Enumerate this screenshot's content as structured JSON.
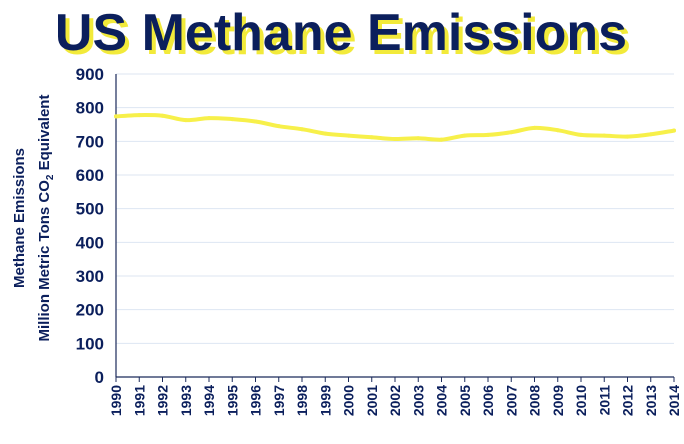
{
  "chart_data": {
    "type": "line",
    "title": "US Methane Emissions",
    "ylabel_line1": "Methane Emissions",
    "ylabel_line2_prefix": "Million Metric Tons CO",
    "ylabel_line2_sub": "2",
    "ylabel_line2_suffix": " Equivalent",
    "ylim": [
      0,
      900
    ],
    "y_ticks": [
      "0",
      "100",
      "200",
      "300",
      "400",
      "500",
      "600",
      "700",
      "800",
      "900"
    ],
    "categories": [
      "1990",
      "1991",
      "1992",
      "1993",
      "1994",
      "1995",
      "1996",
      "1997",
      "1998",
      "1999",
      "2000",
      "2001",
      "2002",
      "2003",
      "2004",
      "2005",
      "2006",
      "2007",
      "2008",
      "2009",
      "2010",
      "2011",
      "2012",
      "2013",
      "2014"
    ],
    "values": [
      774,
      778,
      776,
      763,
      769,
      766,
      759,
      745,
      736,
      723,
      717,
      712,
      707,
      709,
      705,
      717,
      719,
      727,
      740,
      733,
      719,
      717,
      714,
      721,
      732
    ],
    "grid": true,
    "line_color": "#f7f04a",
    "grid_color": "#dde6f2",
    "text_color": "#0b1f5c",
    "title_shadow_color": "#f2ea3a"
  }
}
